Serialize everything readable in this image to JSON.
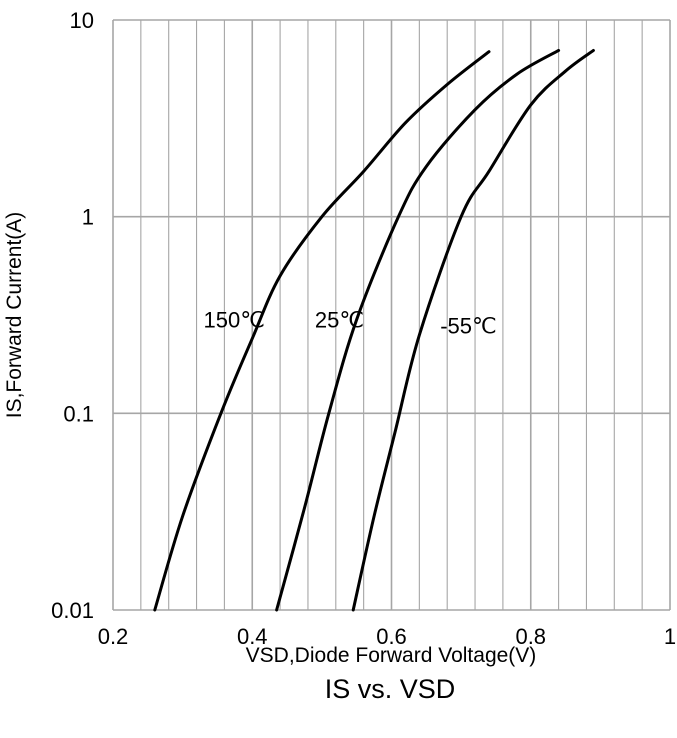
{
  "chart_data": {
    "type": "line",
    "title": "IS vs. VSD",
    "xlabel": "VSD,Diode Forward Voltage(V)",
    "ylabel": "IS,Forward Current(A)",
    "xlim": [
      0.2,
      1.0
    ],
    "ylim": [
      0.01,
      10
    ],
    "yscale": "log",
    "grid": true,
    "x_ticks": [
      0.2,
      0.4,
      0.6,
      0.8,
      1.0
    ],
    "x_tick_labels": [
      "0.2",
      "0.4",
      "0.6",
      "0.8",
      "1"
    ],
    "y_ticks": [
      0.01,
      0.1,
      1,
      10
    ],
    "y_tick_labels": [
      "0.01",
      "0.1",
      "1",
      "10"
    ],
    "line_color": "#000000",
    "grid_color": "#a6a6a6",
    "series": [
      {
        "name": "150℃",
        "points": [
          [
            0.26,
            0.01
          ],
          [
            0.3,
            0.03
          ],
          [
            0.355,
            0.1
          ],
          [
            0.4,
            0.24
          ],
          [
            0.44,
            0.5
          ],
          [
            0.5,
            1.0
          ],
          [
            0.56,
            1.7
          ],
          [
            0.62,
            3.0
          ],
          [
            0.68,
            4.7
          ],
          [
            0.74,
            6.9
          ]
        ]
      },
      {
        "name": "25℃",
        "points": [
          [
            0.435,
            0.01
          ],
          [
            0.475,
            0.033
          ],
          [
            0.51,
            0.1
          ],
          [
            0.55,
            0.3
          ],
          [
            0.61,
            1.0
          ],
          [
            0.65,
            1.8
          ],
          [
            0.72,
            3.5
          ],
          [
            0.78,
            5.3
          ],
          [
            0.84,
            7.0
          ]
        ]
      },
      {
        "name": "-55℃",
        "points": [
          [
            0.545,
            0.01
          ],
          [
            0.575,
            0.03
          ],
          [
            0.605,
            0.08
          ],
          [
            0.64,
            0.25
          ],
          [
            0.7,
            1.0
          ],
          [
            0.74,
            1.7
          ],
          [
            0.8,
            3.7
          ],
          [
            0.85,
            5.5
          ],
          [
            0.89,
            7.0
          ]
        ]
      }
    ],
    "annotations": [
      {
        "text": "150℃",
        "x": 0.33,
        "y": 0.3
      },
      {
        "text": "25℃",
        "x": 0.49,
        "y": 0.3
      },
      {
        "text": "-55℃",
        "x": 0.67,
        "y": 0.28
      }
    ]
  }
}
